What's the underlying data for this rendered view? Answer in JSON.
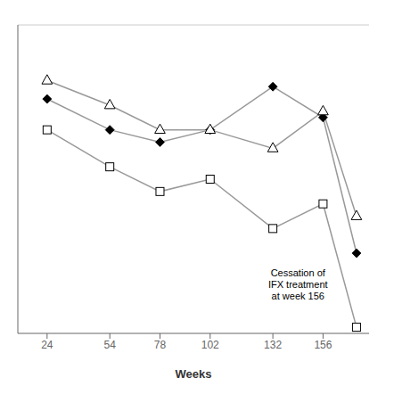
{
  "chart_data": {
    "type": "line",
    "x": [
      24,
      54,
      78,
      102,
      132,
      156,
      172
    ],
    "series": [
      {
        "color": "#999999",
        "marker": "diamond",
        "values": [
          93,
          88,
          86,
          88,
          95,
          90,
          68
        ]
      },
      {
        "color": "#999999",
        "marker": "triangle_open",
        "values": [
          96,
          92,
          88,
          88,
          85,
          91,
          74
        ]
      },
      {
        "color": "#999999",
        "marker": "square_open",
        "values": [
          88,
          82,
          78,
          80,
          72,
          76,
          56
        ]
      }
    ],
    "xlabel": "Weeks",
    "xlim": [
      10,
      178
    ],
    "xticks": [
      24,
      54,
      78,
      102,
      132,
      156
    ],
    "ylim": [
      55,
      105
    ],
    "tick_labels": "x",
    "grid": false,
    "annotations": [
      {
        "text": "Cessation of\nIFX treatment\nat week 156",
        "x": 144,
        "y": 63
      }
    ]
  }
}
